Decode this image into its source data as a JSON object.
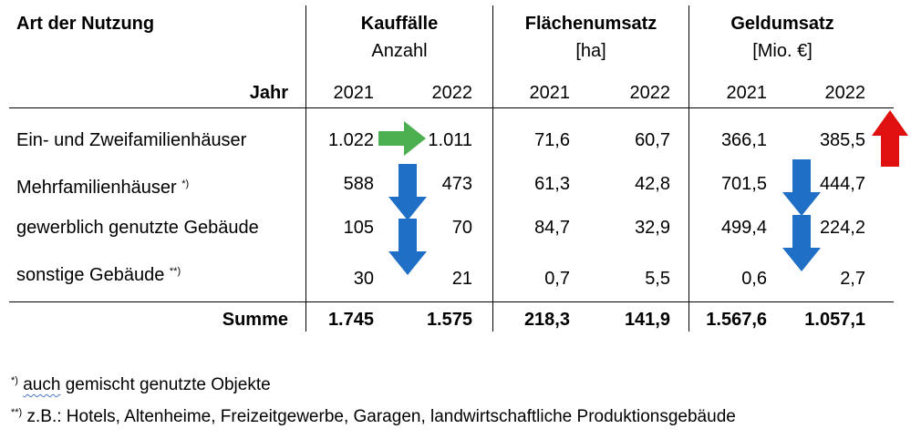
{
  "table": {
    "row_header": "Art der Nutzung",
    "year_label": "Jahr",
    "groups": [
      {
        "title": "Kauffälle",
        "unit": "Anzahl"
      },
      {
        "title": "Flächenumsatz",
        "unit": "[ha]"
      },
      {
        "title": "Geldumsatz",
        "unit": "[Mio. €]"
      }
    ],
    "years": [
      "2021",
      "2022",
      "2021",
      "2022",
      "2021",
      "2022"
    ],
    "rows": [
      {
        "label": "Ein- und Zweifamilienhäuser",
        "marker": "",
        "values": [
          "1.022",
          "1.011",
          "71,6",
          "60,7",
          "366,1",
          "385,5"
        ]
      },
      {
        "label": "Mehrfamilienhäuser",
        "marker": "*)",
        "values": [
          "588",
          "473",
          "61,3",
          "42,8",
          "701,5",
          "444,7"
        ]
      },
      {
        "label": "gewerblich genutzte Gebäude",
        "marker": "",
        "values": [
          "105",
          "70",
          "84,7",
          "32,9",
          "499,4",
          "224,2"
        ]
      },
      {
        "label": "sonstige Gebäude",
        "marker": "**)",
        "values": [
          "30",
          "21",
          "0,7",
          "5,5",
          "0,6",
          "2,7"
        ]
      }
    ],
    "sum": {
      "label": "Summe",
      "values": [
        "1.745",
        "1.575",
        "218,3",
        "141,9",
        "1.567,6",
        "1.057,1"
      ]
    }
  },
  "footnotes": [
    {
      "marker": "*)",
      "text": "gemischt genutzte Objekte",
      "prefix": "auch"
    },
    {
      "marker": "**)",
      "text": "z.B.: Hotels, Altenheime, Freizeitgewerbe, Garagen, landwirtschaftliche Produktionsgebäude"
    }
  ],
  "indicators": {
    "kauffaelle_efh": {
      "direction": "flat",
      "color": "#4caf50",
      "icon": "arrow-right-icon"
    },
    "kauffaelle_mfh": {
      "direction": "down",
      "color": "#1f6fc6",
      "icon": "arrow-down-icon"
    },
    "kauffaelle_gewerbe": {
      "direction": "down",
      "color": "#1f6fc6",
      "icon": "arrow-down-icon"
    },
    "geld_efh": {
      "direction": "up",
      "color": "#e01010",
      "icon": "arrow-up-icon"
    },
    "geld_mfh": {
      "direction": "down",
      "color": "#1f6fc6",
      "icon": "arrow-down-icon"
    },
    "geld_gewerbe": {
      "direction": "down",
      "color": "#1f6fc6",
      "icon": "arrow-down-icon"
    }
  }
}
